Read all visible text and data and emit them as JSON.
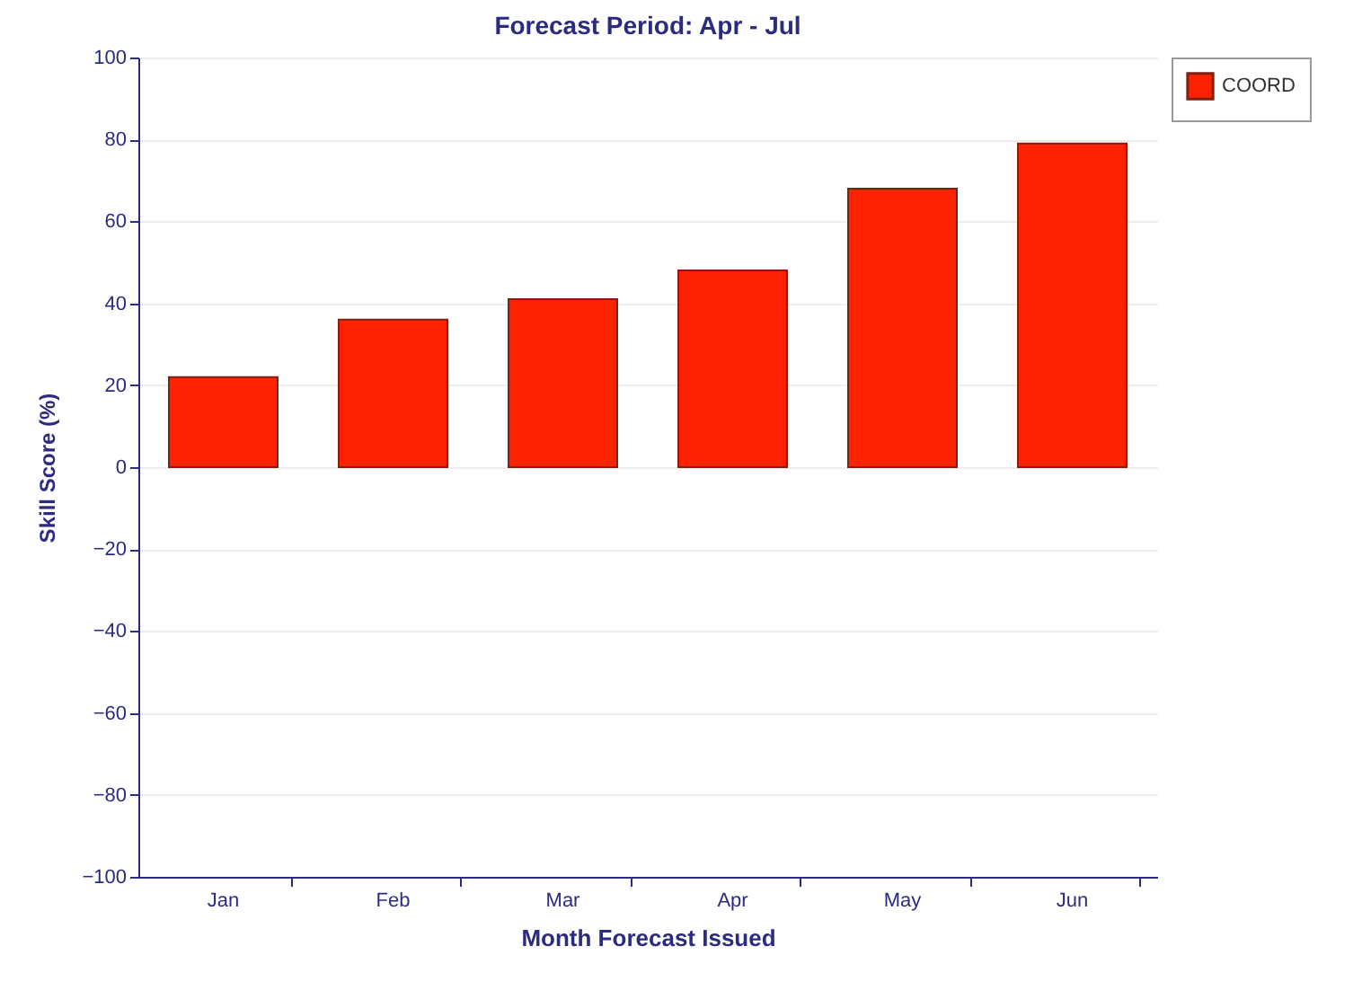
{
  "chart_data": {
    "type": "bar",
    "title": "Forecast Period: Apr - Jul",
    "xlabel": "Month Forecast Issued",
    "ylabel": "Skill Score (%)",
    "categories": [
      "Jan",
      "Feb",
      "Mar",
      "Apr",
      "May",
      "Jun"
    ],
    "series": [
      {
        "name": "COORD",
        "color": "#ff2200",
        "values": [
          22,
          36,
          41,
          48,
          68,
          79
        ]
      }
    ],
    "ylim": [
      -100,
      100
    ],
    "yticks": [
      -100,
      -80,
      -60,
      -40,
      -20,
      0,
      20,
      40,
      60,
      80,
      100
    ],
    "grid": "y",
    "legend": "top right"
  }
}
